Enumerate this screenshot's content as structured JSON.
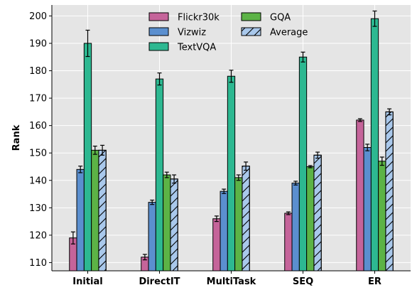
{
  "chart_data": {
    "type": "bar",
    "ylabel": "Rank",
    "xlabel": "",
    "title": "",
    "ylim": [
      107,
      204
    ],
    "yticks": [
      110,
      120,
      130,
      140,
      150,
      160,
      170,
      180,
      190,
      200
    ],
    "grid": true,
    "legend_position": "top-center",
    "categories": [
      "Initial",
      "DirectIT",
      "MultiTask",
      "SEQ",
      "ER"
    ],
    "series": [
      {
        "name": "Flickr30k",
        "color": "#c5649a",
        "hatch": false,
        "values": [
          119,
          112,
          126,
          128,
          162
        ],
        "errors": [
          2.2,
          1.0,
          1.0,
          0.5,
          0.5
        ]
      },
      {
        "name": "Vizwiz",
        "color": "#5b8fcf",
        "hatch": false,
        "values": [
          144,
          132,
          136,
          139,
          152
        ],
        "errors": [
          1.2,
          0.8,
          0.8,
          0.7,
          1.2
        ]
      },
      {
        "name": "TextVQA",
        "color": "#2db891",
        "hatch": false,
        "values": [
          190,
          177,
          178,
          185,
          199
        ],
        "errors": [
          4.8,
          2.2,
          2.2,
          1.8,
          2.8
        ]
      },
      {
        "name": "GQA",
        "color": "#5cb346",
        "hatch": false,
        "values": [
          151,
          142,
          141,
          145,
          147
        ],
        "errors": [
          1.5,
          1.0,
          1.0,
          0.4,
          1.5
        ]
      },
      {
        "name": "Average",
        "color": "#a9c8eb",
        "hatch": true,
        "values": [
          151,
          140.5,
          145.2,
          149.2,
          165
        ],
        "errors": [
          1.8,
          1.5,
          1.5,
          1.1,
          1.1
        ]
      }
    ],
    "legend_layout": [
      [
        "Flickr30k",
        "GQA"
      ],
      [
        "Vizwiz",
        "Average"
      ],
      [
        "TextVQA"
      ]
    ]
  }
}
